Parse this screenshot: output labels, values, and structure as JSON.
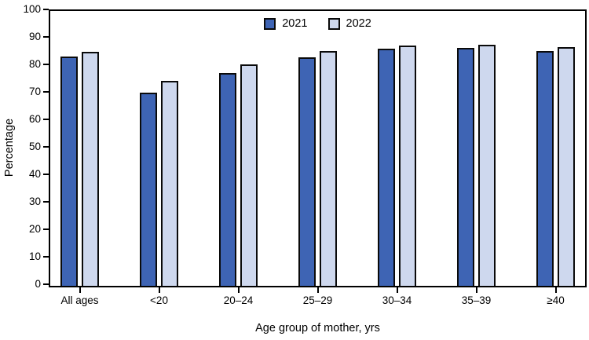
{
  "chart_data": {
    "type": "bar",
    "title": "",
    "xlabel": "Age group of mother, yrs",
    "ylabel": "Percentage",
    "ylim": [
      0,
      100
    ],
    "ytick_interval": 10,
    "grid": false,
    "legend_position": "top-center",
    "categories": [
      "All ages",
      "<20",
      "20–24",
      "25–29",
      "30–34",
      "35–39",
      "≥40"
    ],
    "series": [
      {
        "name": "2021",
        "color": "#3E64B4",
        "values": [
          83.3,
          70.3,
          77.4,
          83.2,
          86.4,
          86.7,
          85.3
        ]
      },
      {
        "name": "2022",
        "color": "#CED8EE",
        "values": [
          85.2,
          74.5,
          80.7,
          85.3,
          87.4,
          87.7,
          86.9
        ]
      }
    ]
  },
  "colors": {
    "background": "#FFFFFF",
    "axis": "#000000",
    "bar_border": "#0A0A0A",
    "text": "#000000"
  }
}
